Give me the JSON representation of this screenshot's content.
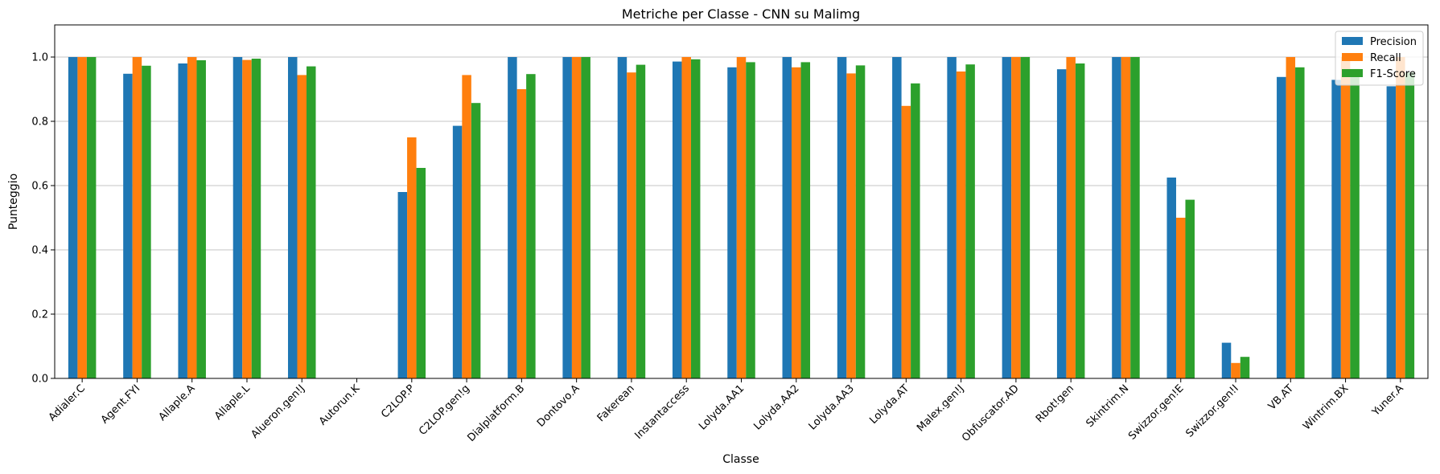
{
  "chart_data": {
    "type": "bar",
    "title": "Metriche per Classe - CNN su Malimg",
    "xlabel": "Classe",
    "ylabel": "Punteggio",
    "ylim": [
      0,
      1.1
    ],
    "yticks": [
      "0.0",
      "0.2",
      "0.4",
      "0.6",
      "0.8",
      "1.0"
    ],
    "grid": "y",
    "legend_position": "top-right",
    "categories": [
      "Adialer.C",
      "Agent.FYI",
      "Allaple.A",
      "Allaple.L",
      "Alueron.gen!J",
      "Autorun.K",
      "C2LOP.P",
      "C2LOP.gen!g",
      "Dialplatform.B",
      "Dontovo.A",
      "Fakerean",
      "Instantaccess",
      "Lolyda.AA1",
      "Lolyda.AA2",
      "Lolyda.AA3",
      "Lolyda.AT",
      "Malex.gen!J",
      "Obfuscator.AD",
      "Rbot!gen",
      "Skintrim.N",
      "Swizzor.gen!E",
      "Swizzor.gen!I",
      "VB.AT",
      "Wintrim.BX",
      "Yuner.A"
    ],
    "series": [
      {
        "name": "Precision",
        "color": "#1f77b4",
        "values": [
          1.0,
          0.948,
          0.98,
          1.0,
          1.0,
          0.0,
          0.58,
          0.786,
          1.0,
          1.0,
          1.0,
          0.986,
          0.968,
          1.0,
          1.0,
          1.0,
          1.0,
          1.0,
          0.962,
          1.0,
          0.625,
          0.111,
          0.938,
          0.929,
          0.909
        ]
      },
      {
        "name": "Recall",
        "color": "#ff7f0e",
        "values": [
          1.0,
          1.0,
          1.0,
          0.991,
          0.944,
          0.0,
          0.75,
          0.944,
          0.9,
          1.0,
          0.952,
          1.0,
          1.0,
          0.968,
          0.949,
          0.848,
          0.955,
          1.0,
          1.0,
          1.0,
          0.5,
          0.048,
          1.0,
          1.0,
          1.0
        ]
      },
      {
        "name": "F1-Score",
        "color": "#2ca02c",
        "values": [
          1.0,
          0.973,
          0.99,
          0.995,
          0.971,
          0.0,
          0.655,
          0.857,
          0.947,
          1.0,
          0.976,
          0.993,
          0.984,
          0.984,
          0.974,
          0.918,
          0.977,
          1.0,
          0.98,
          1.0,
          0.556,
          0.067,
          0.968,
          0.963,
          0.952
        ]
      }
    ]
  }
}
